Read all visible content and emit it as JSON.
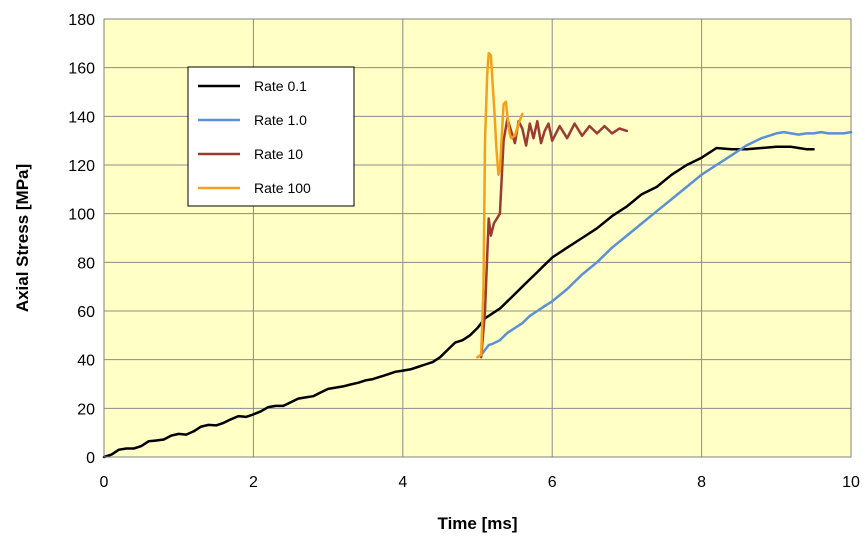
{
  "chart_data": {
    "type": "line",
    "title": "",
    "xlabel": "Time [ms]",
    "ylabel": "Axial Stress [MPa]",
    "xlim": [
      0,
      10
    ],
    "ylim": [
      0,
      180
    ],
    "xticks": [
      0,
      2,
      4,
      6,
      8,
      10
    ],
    "yticks": [
      0,
      20,
      40,
      60,
      80,
      100,
      120,
      140,
      160,
      180
    ],
    "grid": true,
    "legend_position": "top-left",
    "plot_background": "#ffffc6",
    "series": [
      {
        "name": "Rate 0.1",
        "color": "#000000",
        "x": [
          0,
          0.1,
          0.2,
          0.3,
          0.4,
          0.5,
          0.6,
          0.7,
          0.8,
          0.9,
          1.0,
          1.1,
          1.2,
          1.3,
          1.4,
          1.5,
          1.6,
          1.7,
          1.8,
          1.9,
          2.0,
          2.1,
          2.2,
          2.3,
          2.4,
          2.5,
          2.6,
          2.7,
          2.8,
          2.9,
          3.0,
          3.1,
          3.2,
          3.3,
          3.4,
          3.5,
          3.6,
          3.7,
          3.8,
          3.9,
          4.0,
          4.1,
          4.2,
          4.3,
          4.4,
          4.5,
          4.6,
          4.7,
          4.8,
          4.9,
          5.0,
          5.1,
          5.2,
          5.3,
          5.4,
          5.5,
          5.6,
          5.7,
          5.8,
          5.9,
          6.0,
          6.2,
          6.4,
          6.6,
          6.8,
          7.0,
          7.2,
          7.4,
          7.6,
          7.8,
          8.0,
          8.2,
          8.4,
          8.6,
          8.8,
          9.0,
          9.2,
          9.3,
          9.4,
          9.5
        ],
        "y": [
          0,
          1,
          3,
          3.5,
          3.5,
          4.5,
          6.5,
          6.8,
          7.2,
          8.8,
          9.5,
          9.2,
          10.5,
          12.5,
          13.2,
          13,
          14,
          15.5,
          16.8,
          16.5,
          17.5,
          18.8,
          20.5,
          21,
          21,
          22.5,
          24,
          24.5,
          25,
          26.5,
          28,
          28.5,
          29,
          29.8,
          30.5,
          31.5,
          32,
          33,
          34,
          35,
          35.5,
          36,
          37,
          38,
          39,
          41,
          44,
          47,
          48,
          50,
          53,
          57,
          59,
          61,
          64,
          67,
          70,
          73,
          76,
          79,
          82,
          86,
          90,
          94,
          99,
          103,
          108,
          111,
          116,
          120,
          123,
          127,
          126.5,
          126.5,
          127,
          127.5,
          127.5,
          127,
          126.5,
          126.5
        ]
      },
      {
        "name": "Rate 1.0",
        "color": "#5b8fd6",
        "x": [
          5.0,
          5.05,
          5.1,
          5.15,
          5.2,
          5.3,
          5.4,
          5.5,
          5.6,
          5.7,
          5.8,
          5.9,
          6.0,
          6.2,
          6.4,
          6.6,
          6.8,
          7.0,
          7.2,
          7.4,
          7.6,
          7.8,
          8.0,
          8.2,
          8.4,
          8.6,
          8.8,
          9.0,
          9.1,
          9.2,
          9.3,
          9.4,
          9.5,
          9.6,
          9.7,
          9.8,
          9.9,
          10.0
        ],
        "y": [
          41,
          42,
          44,
          46,
          46.5,
          48,
          51,
          53,
          55,
          58,
          60,
          62,
          64,
          69,
          75,
          80,
          86,
          91,
          96,
          101,
          106,
          111,
          116,
          120,
          124,
          128,
          131,
          133,
          133.5,
          133,
          132.5,
          133,
          133,
          133.5,
          133,
          133,
          133,
          133.5
        ]
      },
      {
        "name": "Rate 10",
        "color": "#9b3a32",
        "x": [
          5.05,
          5.1,
          5.15,
          5.18,
          5.22,
          5.3,
          5.35,
          5.4,
          5.45,
          5.5,
          5.55,
          5.6,
          5.65,
          5.7,
          5.75,
          5.8,
          5.85,
          5.9,
          5.95,
          6.0,
          6.1,
          6.2,
          6.3,
          6.4,
          6.5,
          6.6,
          6.7,
          6.8,
          6.9,
          7.0
        ],
        "y": [
          41,
          60,
          98,
          91,
          96,
          100,
          130,
          139,
          134,
          129,
          138,
          135,
          128,
          137,
          131,
          138,
          129,
          134,
          137,
          130,
          136,
          131,
          137,
          132,
          136,
          133,
          136,
          133,
          135,
          134
        ]
      },
      {
        "name": "Rate 100",
        "color": "#f5a01a",
        "x": [
          5.0,
          5.05,
          5.08,
          5.1,
          5.13,
          5.15,
          5.18,
          5.2,
          5.23,
          5.25,
          5.28,
          5.3,
          5.33,
          5.35,
          5.38,
          5.4,
          5.43,
          5.45,
          5.5,
          5.55,
          5.6
        ],
        "y": [
          41,
          42,
          70,
          130,
          157,
          166,
          165,
          155,
          140,
          128,
          116,
          118,
          135,
          145,
          146,
          140,
          133,
          131,
          132,
          137,
          141
        ]
      }
    ]
  }
}
